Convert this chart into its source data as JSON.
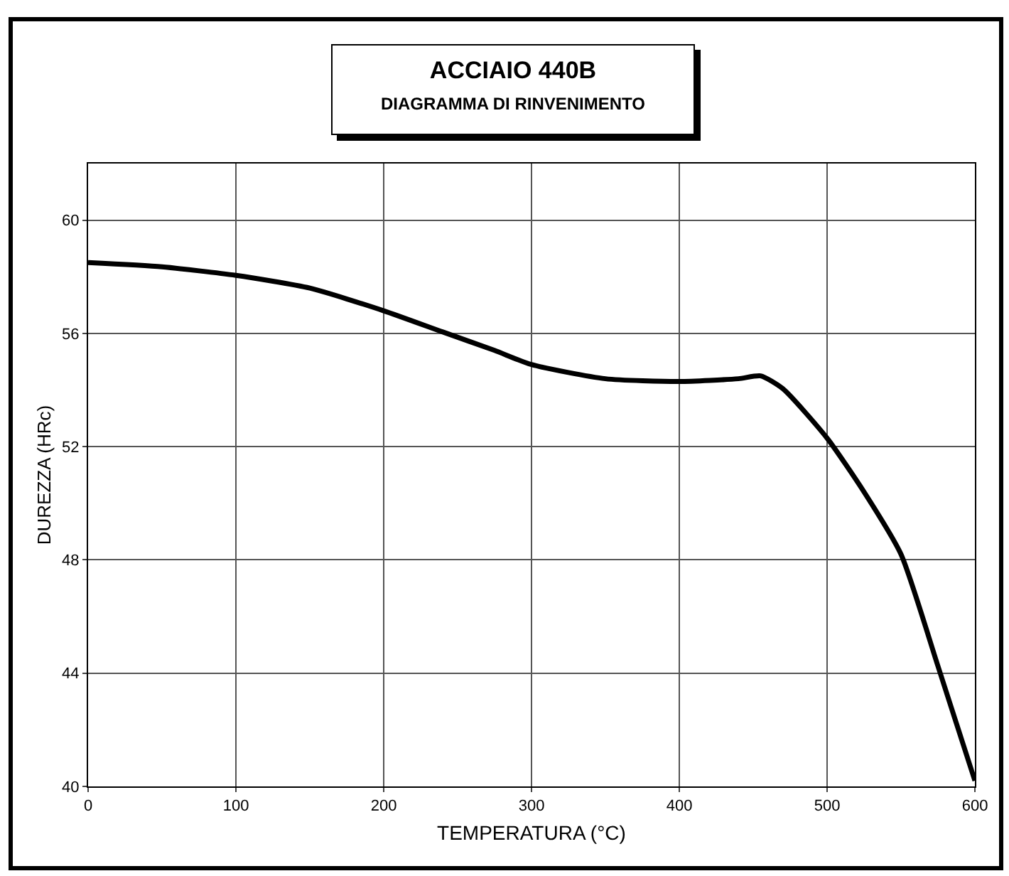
{
  "chart_data": {
    "type": "line",
    "title": "ACCIAIO 440B",
    "subtitle": "DIAGRAMMA DI RINVENIMENTO",
    "xlabel": "TEMPERATURA (°C)",
    "ylabel": "DUREZZA (HRc)",
    "x": [
      0,
      50,
      100,
      150,
      200,
      240,
      275,
      300,
      350,
      400,
      440,
      455,
      470,
      500,
      525,
      550,
      575,
      600
    ],
    "series": [
      {
        "color": "#000000",
        "values": [
          58.5,
          58.35,
          58.05,
          57.6,
          56.8,
          56.05,
          55.4,
          54.9,
          54.4,
          54.3,
          54.4,
          54.5,
          54.05,
          52.3,
          50.4,
          48.2,
          44.25,
          40.2
        ]
      }
    ],
    "xlim": [
      0,
      600
    ],
    "xticks": [
      0,
      100,
      200,
      300,
      400,
      500,
      600
    ],
    "ylim": [
      40,
      62
    ],
    "yticks": [
      40,
      44,
      48,
      52,
      56,
      60
    ],
    "grid": true,
    "marker": "none",
    "line_style": "solid"
  }
}
